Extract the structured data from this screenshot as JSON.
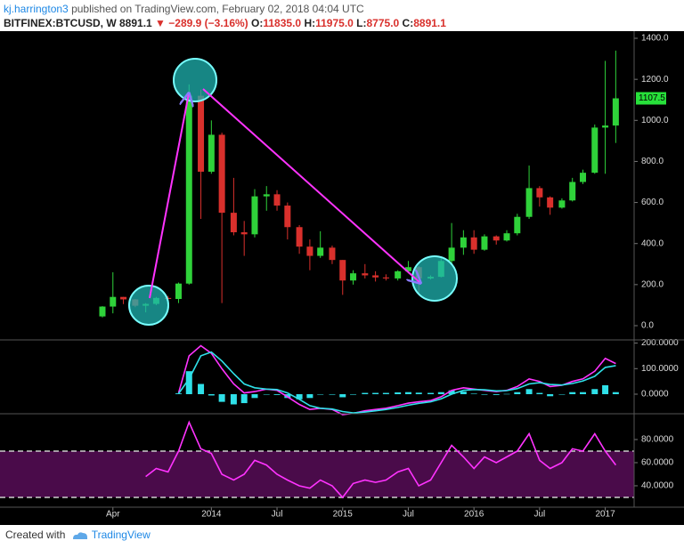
{
  "header": {
    "user": "kj.harrington3",
    "published": "published on TradingView.com, February 02, 2018 04:04 UTC",
    "symbol": "BITFINEX:BTCUSD, W",
    "last": "8891.1",
    "arrow": "▼",
    "change": "−289.9 (−3.16%)",
    "o_label": "O:",
    "o": "11835.0",
    "h_label": "H:",
    "h": "11975.0",
    "l_label": "L:",
    "l": "8775.0",
    "c_label": "C:",
    "c": "8891.1"
  },
  "footer": {
    "created": "Created with",
    "brand": "TradingView"
  },
  "chart_data": [
    {
      "type": "candlestick",
      "up_color": "#2fd23a",
      "down_color": "#d9302c",
      "x": [
        2013.17,
        2013.25,
        2013.33,
        2013.42,
        2013.5,
        2013.58,
        2013.67,
        2013.75,
        2013.83,
        2013.92,
        2014.0,
        2014.08,
        2014.17,
        2014.25,
        2014.33,
        2014.42,
        2014.5,
        2014.58,
        2014.67,
        2014.75,
        2014.83,
        2014.92,
        2015.0,
        2015.08,
        2015.17,
        2015.25,
        2015.33,
        2015.42,
        2015.5,
        2015.58,
        2015.67,
        2015.75,
        2015.83,
        2015.92,
        2016.0,
        2016.08,
        2016.17,
        2016.25,
        2016.33,
        2016.42,
        2016.5,
        2016.58,
        2016.67,
        2016.75,
        2016.83,
        2016.92,
        2017.0,
        2017.08
      ],
      "open": [
        45,
        93,
        140,
        128,
        97,
        106,
        135,
        130,
        205,
        1120,
        750,
        930,
        550,
        455,
        445,
        630,
        640,
        585,
        480,
        385,
        340,
        380,
        320,
        220,
        255,
        245,
        235,
        230,
        265,
        285,
        230,
        238,
        315,
        380,
        430,
        370,
        435,
        415,
        450,
        530,
        670,
        625,
        575,
        610,
        700,
        745,
        965,
        975
      ],
      "high": [
        95,
        260,
        140,
        130,
        110,
        140,
        145,
        210,
        1175,
        1150,
        1000,
        940,
        720,
        510,
        665,
        680,
        660,
        600,
        490,
        420,
        460,
        390,
        320,
        270,
        300,
        265,
        250,
        270,
        315,
        290,
        245,
        330,
        500,
        465,
        465,
        445,
        440,
        465,
        545,
        780,
        680,
        630,
        620,
        720,
        760,
        980,
        1290,
        1340
      ],
      "low": [
        40,
        60,
        105,
        90,
        65,
        100,
        120,
        110,
        200,
        520,
        740,
        110,
        440,
        340,
        430,
        560,
        560,
        420,
        350,
        270,
        330,
        300,
        150,
        200,
        230,
        215,
        220,
        220,
        255,
        160,
        225,
        235,
        300,
        345,
        350,
        365,
        395,
        410,
        440,
        520,
        580,
        540,
        570,
        605,
        690,
        740,
        740,
        890
      ],
      "close": [
        93,
        140,
        128,
        97,
        106,
        135,
        130,
        205,
        1120,
        750,
        930,
        550,
        455,
        445,
        630,
        640,
        585,
        480,
        385,
        340,
        380,
        320,
        220,
        255,
        245,
        235,
        230,
        265,
        285,
        230,
        238,
        315,
        380,
        430,
        370,
        435,
        415,
        450,
        530,
        670,
        625,
        575,
        610,
        700,
        745,
        965,
        975,
        1107.5
      ],
      "last_price": 1107.5,
      "last_price_color": "#27e03a",
      "xlim": [
        2012.39,
        2017.22
      ],
      "xticks": [
        {
          "value": 2013.25,
          "label": "Apr"
        },
        2014,
        {
          "value": 2014.5,
          "label": "Jul"
        },
        2015,
        {
          "value": 2015.5,
          "label": "Jul"
        },
        2016,
        {
          "value": 2016.5,
          "label": "Jul"
        },
        2017
      ],
      "ylim": [
        -69.4,
        1434.8
      ],
      "yticks": [
        {
          "value": 0,
          "label": "0.0"
        },
        {
          "value": 200,
          "label": "200.0"
        },
        {
          "value": 400,
          "label": "400.0"
        },
        {
          "value": 600,
          "label": "600.0"
        },
        {
          "value": 800,
          "label": "800.0"
        },
        {
          "value": 1000,
          "label": "1000.0"
        },
        {
          "value": 1200,
          "label": "1200.0"
        },
        {
          "value": 1400,
          "label": "1400.0"
        }
      ]
    },
    {
      "type": "line",
      "series": [
        {
          "kind": "bar",
          "color": "#2fe0e8",
          "values": [
            null,
            null,
            null,
            null,
            null,
            null,
            null,
            3,
            90,
            40,
            -5,
            -30,
            -40,
            -35,
            -15,
            0,
            -3,
            -15,
            -20,
            -15,
            0,
            -2,
            -12,
            -2,
            5,
            5,
            5,
            7,
            8,
            6,
            5,
            8,
            15,
            10,
            2,
            -2,
            -3,
            1,
            8,
            20,
            5,
            -8,
            -1,
            8,
            8,
            20,
            35,
            8
          ]
        },
        {
          "kind": "line",
          "color": "#ff33ff",
          "values": [
            null,
            null,
            null,
            null,
            null,
            null,
            null,
            5,
            150,
            190,
            160,
            100,
            40,
            5,
            10,
            20,
            15,
            -10,
            -40,
            -60,
            -55,
            -60,
            -80,
            -75,
            -65,
            -60,
            -55,
            -45,
            -35,
            -30,
            -25,
            -10,
            15,
            25,
            20,
            15,
            10,
            15,
            30,
            60,
            50,
            30,
            35,
            50,
            60,
            90,
            140,
            120
          ]
        },
        {
          "kind": "line",
          "color": "#2fe0e8",
          "values": [
            null,
            null,
            null,
            null,
            null,
            null,
            null,
            2,
            60,
            150,
            165,
            130,
            80,
            40,
            25,
            20,
            18,
            5,
            -20,
            -45,
            -55,
            -58,
            -68,
            -73,
            -70,
            -65,
            -60,
            -52,
            -43,
            -36,
            -30,
            -18,
            0,
            15,
            18,
            17,
            13,
            14,
            22,
            40,
            45,
            38,
            36,
            42,
            52,
            70,
            105,
            112
          ]
        }
      ],
      "ylim": [
        -76.6,
        212.5
      ],
      "yticks": [
        {
          "value": 0,
          "label": "0.0000"
        },
        {
          "value": 100,
          "label": "100.0000"
        },
        {
          "value": 200,
          "label": "200.0000"
        }
      ]
    },
    {
      "type": "line",
      "series": [
        {
          "kind": "line",
          "color": "#ff33ff",
          "values": [
            null,
            null,
            null,
            null,
            48,
            55,
            52,
            70,
            95,
            72,
            68,
            50,
            45,
            50,
            62,
            58,
            50,
            45,
            40,
            38,
            45,
            40,
            30,
            42,
            45,
            43,
            45,
            52,
            55,
            40,
            45,
            60,
            75,
            65,
            55,
            65,
            60,
            65,
            70,
            85,
            62,
            55,
            60,
            72,
            70,
            85,
            70,
            58
          ]
        }
      ],
      "bands": [
        30,
        70
      ],
      "band_fill": "#4a0b4a",
      "ylim": [
        21.5,
        102.3
      ],
      "yticks": [
        {
          "value": 40,
          "label": "40.0000"
        },
        {
          "value": 60,
          "label": "60.0000"
        },
        {
          "value": 80,
          "label": "80.0000"
        }
      ]
    }
  ]
}
